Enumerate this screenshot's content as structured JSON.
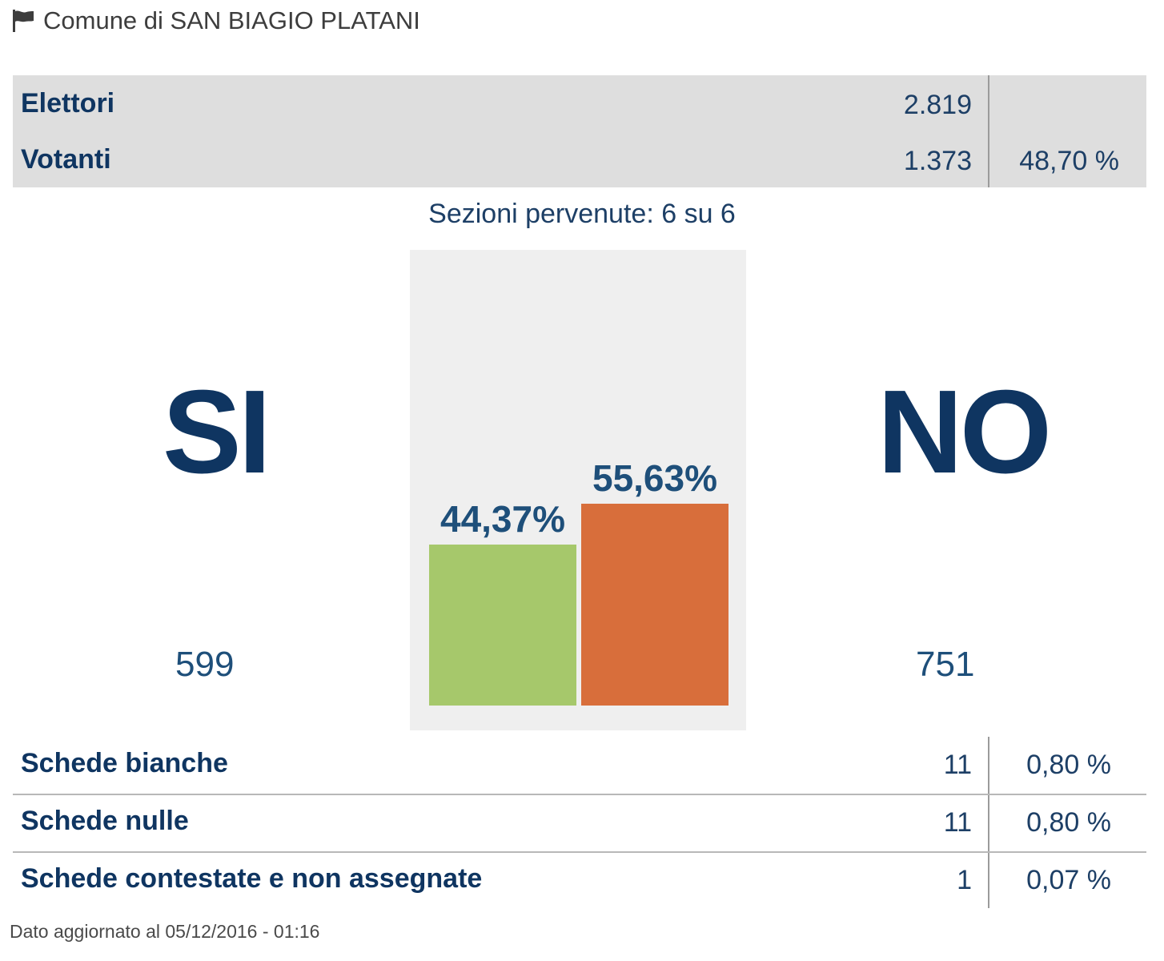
{
  "header": {
    "title": "Comune di SAN BIAGIO PLATANI",
    "icon": "flag-icon"
  },
  "summary": {
    "elettori": {
      "label": "Elettori",
      "value": "2.819"
    },
    "votanti": {
      "label": "Votanti",
      "value": "1.373",
      "percent": "48,70 %"
    }
  },
  "sezioni": "Sezioni pervenute: 6 su 6",
  "results": {
    "si": {
      "label": "SI",
      "votes": "599"
    },
    "no": {
      "label": "NO",
      "votes": "751"
    }
  },
  "chart_data": {
    "type": "bar",
    "categories": [
      "SI",
      "NO"
    ],
    "values": [
      44.37,
      55.63
    ],
    "data_labels": [
      "44,37%",
      "55,63%"
    ],
    "colors": [
      "#a6c86b",
      "#d86e3b"
    ],
    "ylim": [
      0,
      100
    ],
    "grid": false,
    "title": "",
    "xlabel": "",
    "ylabel": ""
  },
  "details": [
    {
      "label": "Schede bianche",
      "value": "11",
      "percent": "0,80 %"
    },
    {
      "label": "Schede nulle",
      "value": "11",
      "percent": "0,80 %"
    },
    {
      "label": "Schede contestate e non assegnate",
      "value": "1",
      "percent": "0,07 %"
    }
  ],
  "footer": "Dato aggiornato al 05/12/2016 - 01:16",
  "colors": {
    "navy": "#0f3561",
    "panel": "#efefef",
    "summary_bg": "#dedede"
  }
}
